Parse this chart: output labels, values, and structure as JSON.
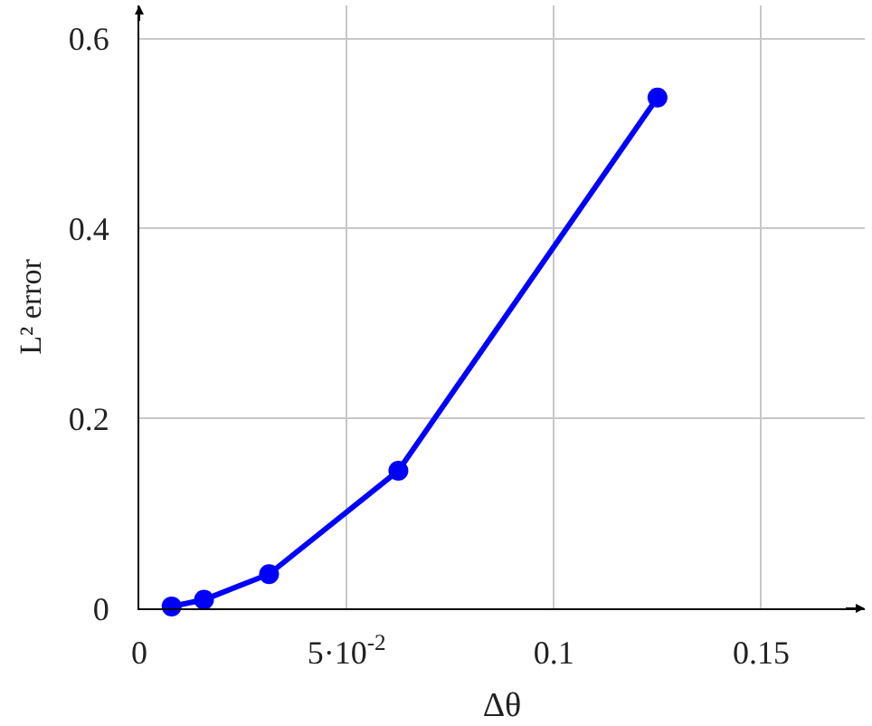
{
  "chart_data": {
    "type": "line",
    "xlabel": "Δθ",
    "ylabel": "L² error",
    "x": [
      0.0078,
      0.0156,
      0.0313,
      0.0625,
      0.125
    ],
    "series": [
      {
        "color": "#0000ff",
        "values": [
          0.002,
          0.009,
          0.036,
          0.145,
          0.538
        ]
      }
    ],
    "xlim": [
      0,
      0.175
    ],
    "ylim": [
      0,
      0.635
    ],
    "xticks": [
      0,
      {
        "value": 0.05,
        "label": "5·10$^{-2}$"
      },
      0.1,
      0.15
    ],
    "yticks": [
      0,
      0.2,
      0.4,
      0.6
    ],
    "grid": true,
    "marker": "circle",
    "line_style": "solid"
  }
}
